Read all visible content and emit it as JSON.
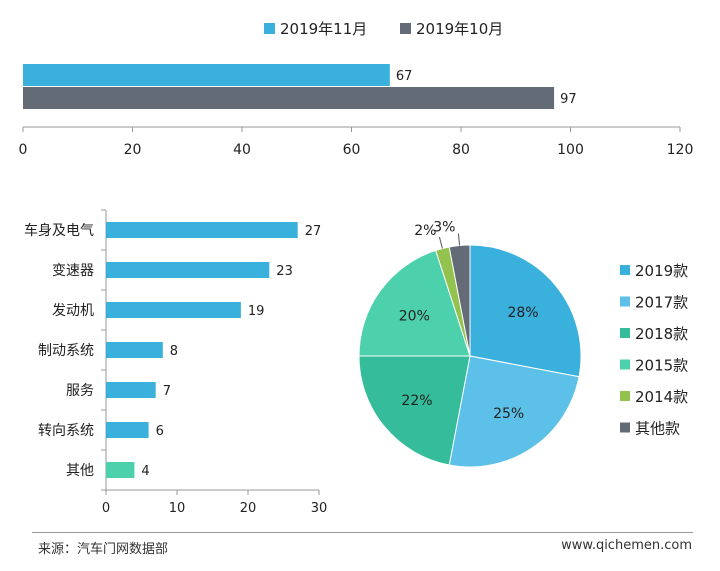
{
  "colors": {
    "c2019_11": "#3ab0dc",
    "c2019_10": "#636b76",
    "bar_default": "#3ab0dc",
    "bar_other": "#4dd1ac",
    "pie": [
      "#3ab0dc",
      "#5dc0e8",
      "#35bc9a",
      "#4dd1ac",
      "#93c24e",
      "#636b76"
    ],
    "axis": "#999999"
  },
  "footer": {
    "source": "来源：汽车门网数据部",
    "site": "www.qichemen.com"
  },
  "chart_data": [
    {
      "type": "bar",
      "orientation": "horizontal",
      "series": [
        {
          "name": "2019年11月",
          "values": [
            67
          ],
          "color": "#3ab0dc"
        },
        {
          "name": "2019年10月",
          "values": [
            97
          ],
          "color": "#636b76"
        }
      ],
      "xlim": [
        0,
        120
      ],
      "xticks": [
        0,
        20,
        40,
        60,
        80,
        100,
        120
      ],
      "legend_position": "top",
      "data_labels": true
    },
    {
      "type": "bar",
      "orientation": "horizontal",
      "categories": [
        "车身及电气",
        "变速器",
        "发动机",
        "制动系统",
        "服务",
        "转向系统",
        "其他"
      ],
      "values": [
        27,
        23,
        19,
        8,
        7,
        6,
        4
      ],
      "xlim": [
        0,
        30
      ],
      "xticks": [
        0,
        10,
        20,
        30
      ],
      "data_labels": true
    },
    {
      "type": "pie",
      "labels": [
        "2019款",
        "2017款",
        "2018款",
        "2015款",
        "2014款",
        "其他款"
      ],
      "values": [
        28,
        25,
        22,
        20,
        2,
        3
      ],
      "value_labels": [
        "28%",
        "25%",
        "22%",
        "20%",
        "2%",
        "3%"
      ],
      "legend_position": "right"
    }
  ]
}
